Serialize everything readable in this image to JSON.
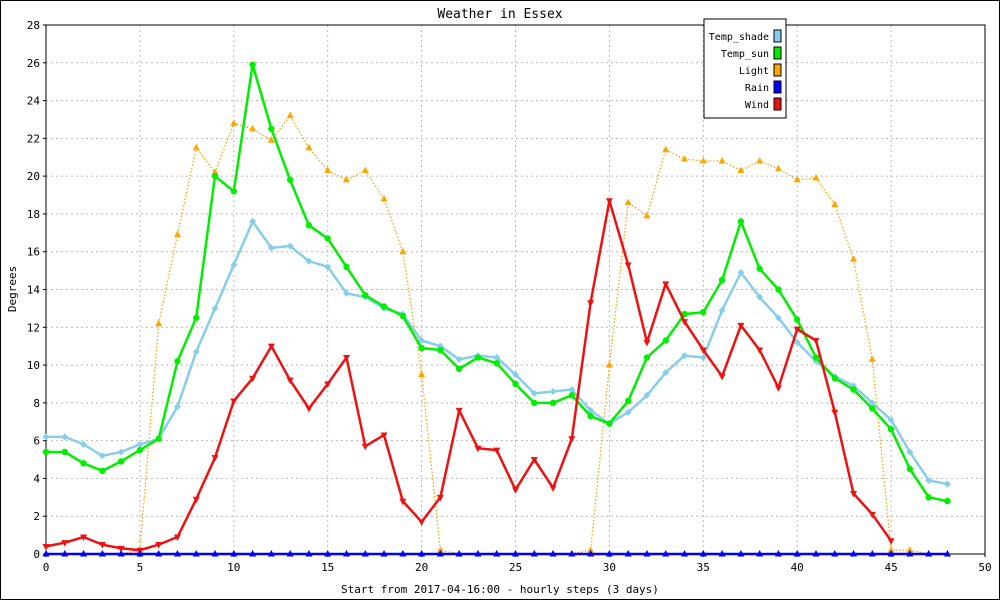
{
  "chart_data": {
    "type": "line",
    "title": "Weather in Essex",
    "xlabel": "Start from 2017-04-16:00 - hourly steps (3 days)",
    "ylabel": "Degrees",
    "xlim": [
      0,
      50
    ],
    "ylim": [
      0,
      28
    ],
    "x_ticks": [
      0,
      5,
      10,
      15,
      20,
      25,
      30,
      35,
      40,
      45,
      50
    ],
    "y_ticks": [
      0,
      2,
      4,
      6,
      8,
      10,
      12,
      14,
      16,
      18,
      20,
      22,
      24,
      26,
      28
    ],
    "grid": true,
    "legend_position": "top-right",
    "series": [
      {
        "name": "Temp_shade",
        "color": "#87ceeb",
        "line_style": "solid",
        "marker": "diamond",
        "x": [
          0,
          1,
          2,
          3,
          4,
          5,
          6,
          7,
          8,
          9,
          10,
          11,
          12,
          13,
          14,
          15,
          16,
          17,
          18,
          19,
          20,
          21,
          22,
          23,
          24,
          25,
          26,
          27,
          28,
          29,
          30,
          31,
          32,
          33,
          34,
          35,
          36,
          37,
          38,
          39,
          40,
          41,
          42,
          43,
          44,
          45,
          46,
          47,
          48
        ],
        "values": [
          6.2,
          6.2,
          5.8,
          5.2,
          5.4,
          5.8,
          6.1,
          7.8,
          10.7,
          13,
          15.3,
          17.6,
          16.2,
          16.3,
          15.5,
          15.2,
          13.8,
          13.6,
          13,
          12.7,
          11.3,
          11,
          10.3,
          10.5,
          10.4,
          9.5,
          8.5,
          8.6,
          8.7,
          7.6,
          6.9,
          7.5,
          8.4,
          9.6,
          10.5,
          10.4,
          12.9,
          14.9,
          13.6,
          12.5,
          11.2,
          10.2,
          9.4,
          8.9,
          8,
          7.1,
          5.4,
          3.9,
          3.7
        ]
      },
      {
        "name": "Temp_sun",
        "color": "#00ee00",
        "line_style": "solid",
        "marker": "circle",
        "x": [
          0,
          1,
          2,
          3,
          4,
          5,
          6,
          7,
          8,
          9,
          10,
          11,
          12,
          13,
          14,
          15,
          16,
          17,
          18,
          19,
          20,
          21,
          22,
          23,
          24,
          25,
          26,
          27,
          28,
          29,
          30,
          31,
          32,
          33,
          34,
          35,
          36,
          37,
          38,
          39,
          40,
          41,
          42,
          43,
          44,
          45,
          46,
          47,
          48
        ],
        "values": [
          5.4,
          5.4,
          4.8,
          4.4,
          4.9,
          5.5,
          6.1,
          10.2,
          12.5,
          20,
          19.2,
          25.9,
          22.5,
          19.8,
          17.4,
          16.7,
          15.2,
          13.7,
          13.1,
          12.6,
          10.9,
          10.8,
          9.8,
          10.4,
          10.1,
          9,
          8,
          8,
          8.4,
          7.3,
          6.9,
          8.1,
          10.4,
          11.3,
          12.7,
          12.8,
          14.5,
          17.6,
          15.1,
          14,
          12.4,
          10.4,
          9.3,
          8.7,
          7.7,
          6.6,
          4.5,
          3,
          2.8
        ]
      },
      {
        "name": "Light",
        "color": "#ffa500",
        "line_style": "dotted",
        "marker": "triangle-up",
        "x": [
          0,
          1,
          2,
          3,
          4,
          5,
          6,
          7,
          8,
          9,
          10,
          11,
          12,
          13,
          14,
          15,
          16,
          17,
          18,
          19,
          20,
          21,
          22,
          23,
          24,
          25,
          26,
          27,
          28,
          29,
          30,
          31,
          32,
          33,
          34,
          35,
          36,
          37,
          38,
          39,
          40,
          41,
          42,
          43,
          44,
          45,
          46,
          47,
          48
        ],
        "values": [
          0,
          0,
          0,
          0,
          0,
          0.2,
          12.2,
          16.9,
          21.5,
          20.2,
          22.8,
          22.5,
          21.9,
          23.2,
          21.5,
          20.3,
          19.8,
          20.3,
          18.8,
          16,
          9.5,
          0.2,
          0,
          0,
          0,
          0,
          0,
          0,
          0,
          0.2,
          10,
          18.6,
          17.9,
          21.4,
          20.9,
          20.8,
          20.8,
          20.3,
          20.8,
          20.4,
          19.8,
          19.9,
          18.5,
          15.6,
          10.3,
          0.2,
          0.2,
          0,
          0
        ]
      },
      {
        "name": "Rain",
        "color": "#0000ff",
        "line_style": "solid",
        "marker": "triangle-up",
        "x": [
          0,
          1,
          2,
          3,
          4,
          5,
          6,
          7,
          8,
          9,
          10,
          11,
          12,
          13,
          14,
          15,
          16,
          17,
          18,
          19,
          20,
          21,
          22,
          23,
          24,
          25,
          26,
          27,
          28,
          29,
          30,
          31,
          32,
          33,
          34,
          35,
          36,
          37,
          38,
          39,
          40,
          41,
          42,
          43,
          44,
          45,
          46,
          47,
          48
        ],
        "values": [
          0,
          0,
          0,
          0,
          0,
          0,
          0,
          0,
          0,
          0,
          0,
          0,
          0,
          0,
          0,
          0,
          0,
          0,
          0,
          0,
          0,
          0,
          0,
          0,
          0,
          0,
          0,
          0,
          0,
          0,
          0,
          0,
          0,
          0,
          0,
          0,
          0,
          0,
          0,
          0,
          0,
          0,
          0,
          0,
          0,
          0,
          0,
          0,
          0
        ]
      },
      {
        "name": "Wind",
        "color": "#ee1111",
        "line_style": "solid",
        "marker": "triangle-down",
        "x": [
          0,
          1,
          2,
          3,
          4,
          5,
          6,
          7,
          8,
          9,
          10,
          11,
          12,
          13,
          14,
          15,
          16,
          17,
          18,
          19,
          20,
          21,
          22,
          23,
          24,
          25,
          26,
          27,
          28,
          29,
          30,
          31,
          32,
          33,
          34,
          35,
          36,
          37,
          38,
          39,
          40,
          41,
          42,
          43,
          44,
          45
        ],
        "values": [
          0.4,
          0.6,
          0.9,
          0.5,
          0.3,
          0.2,
          0.5,
          0.9,
          2.9,
          5.1,
          8.1,
          9.3,
          11,
          9.2,
          7.7,
          9,
          10.4,
          5.7,
          6.3,
          2.8,
          1.7,
          3,
          7.6,
          5.6,
          5.5,
          3.4,
          5,
          3.5,
          6.1,
          13.3,
          18.7,
          15.3,
          11.2,
          14.3,
          12.3,
          10.8,
          9.4,
          12.1,
          10.8,
          8.8,
          11.9,
          11.3,
          7.5,
          3.2,
          2.1,
          0.7
        ]
      }
    ]
  }
}
